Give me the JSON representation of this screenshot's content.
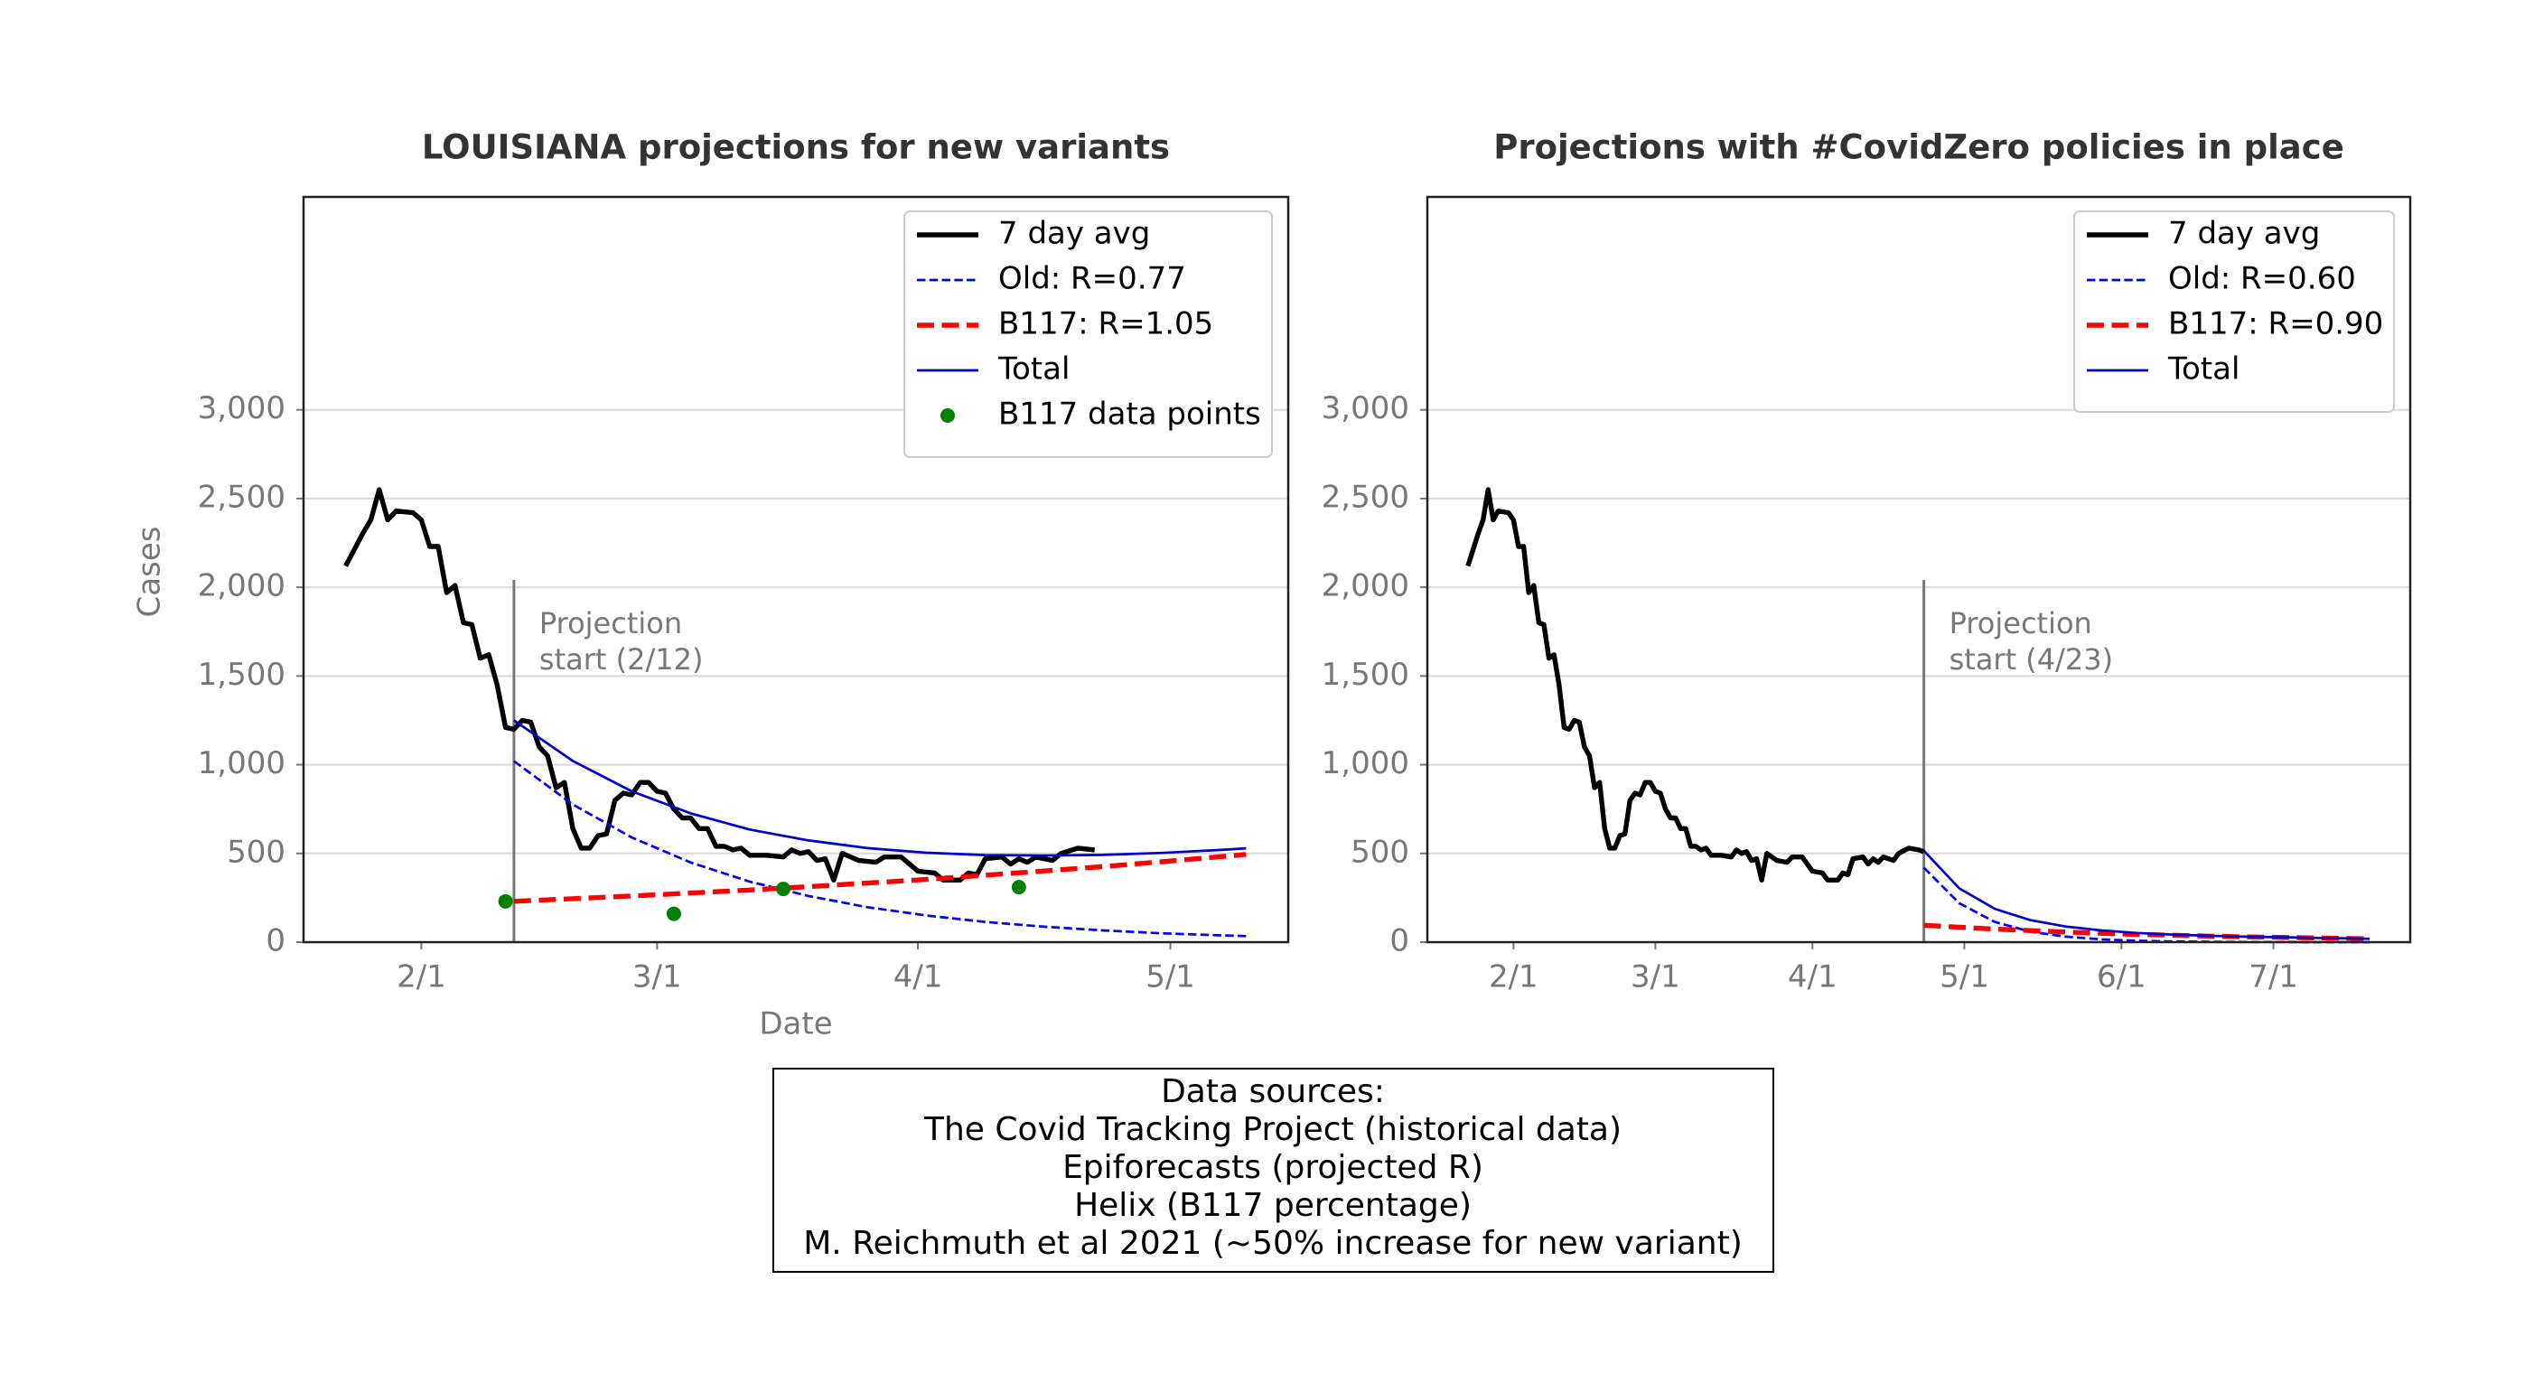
{
  "chart_data": [
    {
      "type": "line",
      "title": "LOUISIANA projections for new variants",
      "xlabel": "Date",
      "ylabel": "Cases",
      "xlim": [
        "1/18",
        "5/15"
      ],
      "xticks": [
        "2/1",
        "3/1",
        "4/1",
        "5/1"
      ],
      "ylim": [
        0,
        4200
      ],
      "yticks": [
        0,
        500,
        {
          "value": 1000,
          "label": "1,000"
        },
        {
          "value": 1500,
          "label": "1,500"
        },
        {
          "value": 2000,
          "label": "2,000"
        },
        {
          "value": 2500,
          "label": "2,500"
        },
        {
          "value": 3000,
          "label": "3,000"
        }
      ],
      "grid": true,
      "legend": "upper right",
      "annotation": {
        "x": "2/12",
        "lines": [
          "Projection",
          "start (2/12)"
        ]
      },
      "series": [
        {
          "name": "7 day avg",
          "color": "#000000",
          "linestyle": "solid",
          "linewidth": 3,
          "x": [
            "1/23",
            "1/25",
            "1/26",
            "1/27",
            "1/28",
            "1/29",
            "1/31",
            "2/1",
            "2/2",
            "2/3",
            "2/4",
            "2/5",
            "2/6",
            "2/7",
            "2/8",
            "2/9",
            "2/10",
            "2/11",
            "2/12",
            "2/13",
            "2/14",
            "2/15",
            "2/16",
            "2/17",
            "2/18",
            "2/19",
            "2/20",
            "2/21",
            "2/22",
            "2/23",
            "2/24",
            "2/25",
            "2/26",
            "2/27",
            "2/28",
            "3/1",
            "3/2",
            "3/3",
            "3/4",
            "3/5",
            "3/6",
            "3/7",
            "3/8",
            "3/9",
            "3/10",
            "3/11",
            "3/12",
            "3/14",
            "3/16",
            "3/17",
            "3/18",
            "3/19",
            "3/20",
            "3/21",
            "3/22",
            "3/23",
            "3/25",
            "3/27",
            "3/28",
            "3/30",
            "4/1",
            "4/3",
            "4/4",
            "4/6",
            "4/7",
            "4/8",
            "4/9",
            "4/11",
            "4/12",
            "4/13",
            "4/14",
            "4/15",
            "4/17",
            "4/18",
            "4/20",
            "4/22"
          ],
          "values": [
            2120,
            2300,
            2380,
            2550,
            2380,
            2430,
            2420,
            2380,
            2230,
            2230,
            1970,
            2010,
            1800,
            1790,
            1600,
            1620,
            1450,
            1210,
            1200,
            1250,
            1240,
            1100,
            1050,
            870,
            900,
            640,
            530,
            530,
            600,
            610,
            800,
            840,
            830,
            900,
            900,
            850,
            840,
            750,
            700,
            700,
            640,
            640,
            540,
            540,
            520,
            530,
            490,
            490,
            480,
            520,
            500,
            510,
            460,
            470,
            350,
            500,
            460,
            450,
            480,
            480,
            400,
            390,
            350,
            350,
            390,
            380,
            470,
            480,
            440,
            470,
            450,
            480,
            460,
            500,
            530,
            520
          ]
        },
        {
          "name": "Old: R=0.77",
          "color": "#0000ff",
          "linestyle": "dashed",
          "linewidth": 1.5,
          "x": [
            "2/12",
            "2/19",
            "2/26",
            "3/5",
            "3/12",
            "3/19",
            "3/26",
            "4/2",
            "4/9",
            "4/16",
            "4/23",
            "4/30",
            "5/7",
            "5/10"
          ],
          "values": [
            1020,
            776,
            590,
            449,
            341,
            260,
            197,
            150,
            114,
            87,
            66,
            50,
            38,
            34
          ]
        },
        {
          "name": "B117: R=1.05",
          "color": "#ff0000",
          "linestyle": "dashed",
          "linewidth": 3,
          "x": [
            "2/12",
            "2/19",
            "2/26",
            "3/5",
            "3/12",
            "3/19",
            "3/26",
            "4/2",
            "4/9",
            "4/16",
            "4/23",
            "4/30",
            "5/7",
            "5/10"
          ],
          "values": [
            230,
            245,
            260,
            277,
            294,
            313,
            333,
            354,
            377,
            401,
            426,
            453,
            482,
            495
          ]
        },
        {
          "name": "Total",
          "color": "#0000cd",
          "linestyle": "solid",
          "linewidth": 1.5,
          "x": [
            "2/12",
            "2/19",
            "2/26",
            "3/5",
            "3/12",
            "3/19",
            "3/26",
            "4/2",
            "4/9",
            "4/16",
            "4/23",
            "4/30",
            "5/7",
            "5/10"
          ],
          "values": [
            1250,
            1021,
            850,
            726,
            635,
            573,
            530,
            504,
            491,
            488,
            492,
            503,
            520,
            529
          ]
        },
        {
          "name": "B117 data points",
          "color": "#008000",
          "kind": "scatter",
          "x": [
            "2/11",
            "3/3",
            "3/16",
            "4/13"
          ],
          "values": [
            230,
            160,
            300,
            310
          ]
        }
      ]
    },
    {
      "type": "line",
      "title": "Projections with #CovidZero policies in place",
      "xlim": [
        "1/15",
        "7/28"
      ],
      "xticks": [
        "2/1",
        "3/1",
        "4/1",
        "5/1",
        "6/1",
        "7/1"
      ],
      "ylim": [
        0,
        4200
      ],
      "yticks": [
        0,
        500,
        {
          "value": 1000,
          "label": "1,000"
        },
        {
          "value": 1500,
          "label": "1,500"
        },
        {
          "value": 2000,
          "label": "2,000"
        },
        {
          "value": 2500,
          "label": "2,500"
        },
        {
          "value": 3000,
          "label": "3,000"
        }
      ],
      "grid": true,
      "legend": "upper right",
      "annotation": {
        "x": "4/23",
        "lines": [
          "Projection",
          "start (4/23)"
        ]
      },
      "series": [
        {
          "name": "7 day avg",
          "color": "#000000",
          "linestyle": "solid",
          "linewidth": 3,
          "x": [
            "1/23",
            "1/25",
            "1/26",
            "1/27",
            "1/28",
            "1/29",
            "1/31",
            "2/1",
            "2/2",
            "2/3",
            "2/4",
            "2/5",
            "2/6",
            "2/7",
            "2/8",
            "2/9",
            "2/10",
            "2/11",
            "2/12",
            "2/13",
            "2/14",
            "2/15",
            "2/16",
            "2/17",
            "2/18",
            "2/19",
            "2/20",
            "2/21",
            "2/22",
            "2/23",
            "2/24",
            "2/25",
            "2/26",
            "2/27",
            "2/28",
            "3/1",
            "3/2",
            "3/3",
            "3/4",
            "3/5",
            "3/6",
            "3/7",
            "3/8",
            "3/9",
            "3/10",
            "3/11",
            "3/12",
            "3/14",
            "3/16",
            "3/17",
            "3/18",
            "3/19",
            "3/20",
            "3/21",
            "3/22",
            "3/23",
            "3/25",
            "3/27",
            "3/28",
            "3/30",
            "4/1",
            "4/3",
            "4/4",
            "4/6",
            "4/7",
            "4/8",
            "4/9",
            "4/11",
            "4/12",
            "4/13",
            "4/14",
            "4/15",
            "4/17",
            "4/18",
            "4/20",
            "4/22",
            "4/23"
          ],
          "values": [
            2120,
            2300,
            2380,
            2550,
            2380,
            2430,
            2420,
            2380,
            2230,
            2230,
            1970,
            2010,
            1800,
            1790,
            1600,
            1620,
            1450,
            1210,
            1200,
            1250,
            1240,
            1100,
            1050,
            870,
            900,
            640,
            530,
            530,
            600,
            610,
            800,
            840,
            830,
            900,
            900,
            850,
            840,
            750,
            700,
            700,
            640,
            640,
            540,
            540,
            520,
            530,
            490,
            490,
            480,
            520,
            500,
            510,
            460,
            470,
            350,
            500,
            460,
            450,
            480,
            480,
            400,
            390,
            350,
            350,
            390,
            380,
            470,
            480,
            440,
            470,
            450,
            480,
            460,
            500,
            530,
            520,
            510
          ]
        },
        {
          "name": "Old: R=0.60",
          "color": "#0000ff",
          "linestyle": "dashed",
          "linewidth": 1.5,
          "x": [
            "4/23",
            "4/30",
            "5/7",
            "5/14",
            "5/21",
            "5/28",
            "6/4",
            "6/11",
            "6/18",
            "6/25",
            "7/2",
            "7/9",
            "7/16",
            "7/20"
          ],
          "values": [
            420,
            219,
            114,
            59,
            31,
            16,
            8,
            4,
            2,
            1,
            1,
            0,
            0,
            0
          ]
        },
        {
          "name": "B117: R=0.90",
          "color": "#ff0000",
          "linestyle": "dashed",
          "linewidth": 3,
          "x": [
            "4/23",
            "4/30",
            "5/7",
            "5/14",
            "5/21",
            "5/28",
            "6/4",
            "6/11",
            "6/18",
            "6/25",
            "7/2",
            "7/9",
            "7/16",
            "7/20"
          ],
          "values": [
            95,
            84,
            74,
            65,
            57,
            50,
            44,
            39,
            34,
            30,
            27,
            24,
            21,
            19
          ]
        },
        {
          "name": "Total",
          "color": "#0000cd",
          "linestyle": "solid",
          "linewidth": 1.5,
          "x": [
            "4/23",
            "4/30",
            "5/7",
            "5/14",
            "5/21",
            "5/28",
            "6/4",
            "6/11",
            "6/18",
            "6/25",
            "7/2",
            "7/9",
            "7/16",
            "7/20"
          ],
          "values": [
            515,
            303,
            188,
            124,
            88,
            66,
            52,
            43,
            36,
            31,
            28,
            24,
            21,
            19
          ]
        }
      ]
    }
  ],
  "sources": {
    "lines": [
      "Data sources:",
      "The Covid Tracking Project (historical data)",
      "Epiforecasts (projected R)",
      "Helix (B117 percentage)",
      "M. Reichmuth et al 2021 (~50% increase for new variant)"
    ]
  }
}
